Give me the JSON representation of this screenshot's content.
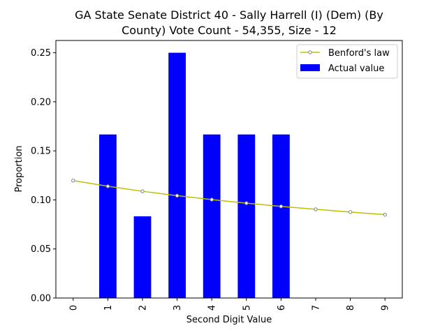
{
  "chart_data": {
    "type": "bar",
    "title_line1": "GA State Senate District 40 - Sally Harrell (I) (Dem) (By",
    "title_line2": "County) Vote Count - 54,355, Size - 12",
    "xlabel": "Second Digit Value",
    "ylabel": "Proportion",
    "categories": [
      "0",
      "1",
      "2",
      "3",
      "4",
      "5",
      "6",
      "7",
      "8",
      "9"
    ],
    "series": [
      {
        "name": "Actual value",
        "type": "bar",
        "color": "#0000ff",
        "values": [
          0.0,
          0.1667,
          0.0833,
          0.25,
          0.1667,
          0.1667,
          0.1667,
          0.0,
          0.0,
          0.0
        ]
      },
      {
        "name": "Benford's law",
        "type": "line",
        "color": "#bfbf00",
        "marker_color": "#808080",
        "values": [
          0.1197,
          0.1139,
          0.1088,
          0.1043,
          0.1003,
          0.0967,
          0.0934,
          0.0904,
          0.0876,
          0.085
        ]
      }
    ],
    "ylim": [
      0,
      0.2625
    ],
    "yticks": [
      0.0,
      0.05,
      0.1,
      0.15,
      0.2,
      0.25
    ],
    "ytick_labels": [
      "0.00",
      "0.05",
      "0.10",
      "0.15",
      "0.20",
      "0.25"
    ],
    "legend": {
      "position": "top-right",
      "entries": [
        "Benford's law",
        "Actual value"
      ]
    }
  }
}
